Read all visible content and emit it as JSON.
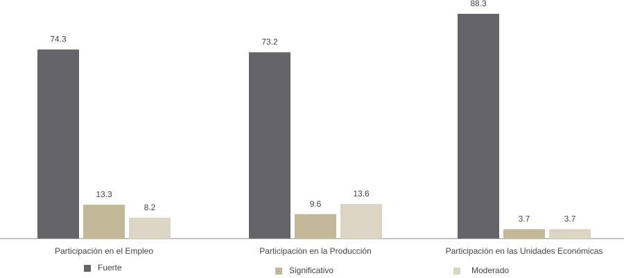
{
  "chart_data": {
    "type": "bar",
    "categories": [
      "Participación en el Empleo",
      "Participaciòn en la Producción",
      "Participación en las Unidades Económicas"
    ],
    "series": [
      {
        "name": "Fuerte",
        "color": "#646469",
        "values": [
          74.3,
          73.2,
          88.3
        ]
      },
      {
        "name": "Significativo",
        "color": "#c1b898",
        "values": [
          13.3,
          9.6,
          3.7
        ]
      },
      {
        "name": "Moderado",
        "color": "#ddd5c3",
        "values": [
          8.2,
          13.6,
          3.7
        ]
      }
    ]
  }
}
